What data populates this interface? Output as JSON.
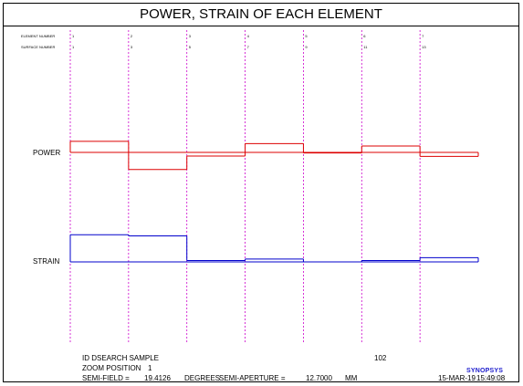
{
  "title": "POWER, STRAIN OF EACH ELEMENT",
  "chart_data": {
    "type": "step",
    "title": "POWER, STRAIN OF EACH ELEMENT",
    "row_labels": {
      "element_number": "ELEMENT NUMBER",
      "surface_number": "SURFACE NUMBER"
    },
    "element_numbers": [
      "1",
      "2",
      "3",
      "4",
      "5",
      "6",
      "7"
    ],
    "surface_numbers": [
      "1",
      "3",
      "5",
      "7",
      "9",
      "11",
      "13"
    ],
    "series": [
      {
        "name": "POWER",
        "color": "#dd0000",
        "values": [
          0.55,
          -0.85,
          -0.18,
          0.44,
          -0.03,
          0.32,
          -0.2
        ]
      },
      {
        "name": "STRAIN",
        "color": "#0000cc",
        "values": [
          0.96,
          0.92,
          0.05,
          0.1,
          0.0,
          0.05,
          0.15
        ]
      }
    ]
  },
  "footer": {
    "id_line": "ID DSEARCH SAMPLE",
    "id_number": "102",
    "zoom_label": "ZOOM POSITION",
    "zoom_value": "1",
    "semi_field_label": "SEMI-FIELD =",
    "semi_field_value": "19.4126",
    "semi_field_unit": "DEGREES",
    "semi_aperture_label": "SEMI-APERTURE =",
    "semi_aperture_value": "12.7000",
    "semi_aperture_unit": "MM",
    "date": "15-MAR-19",
    "time": "15:49:08",
    "logo": "SYNOPSYS"
  }
}
